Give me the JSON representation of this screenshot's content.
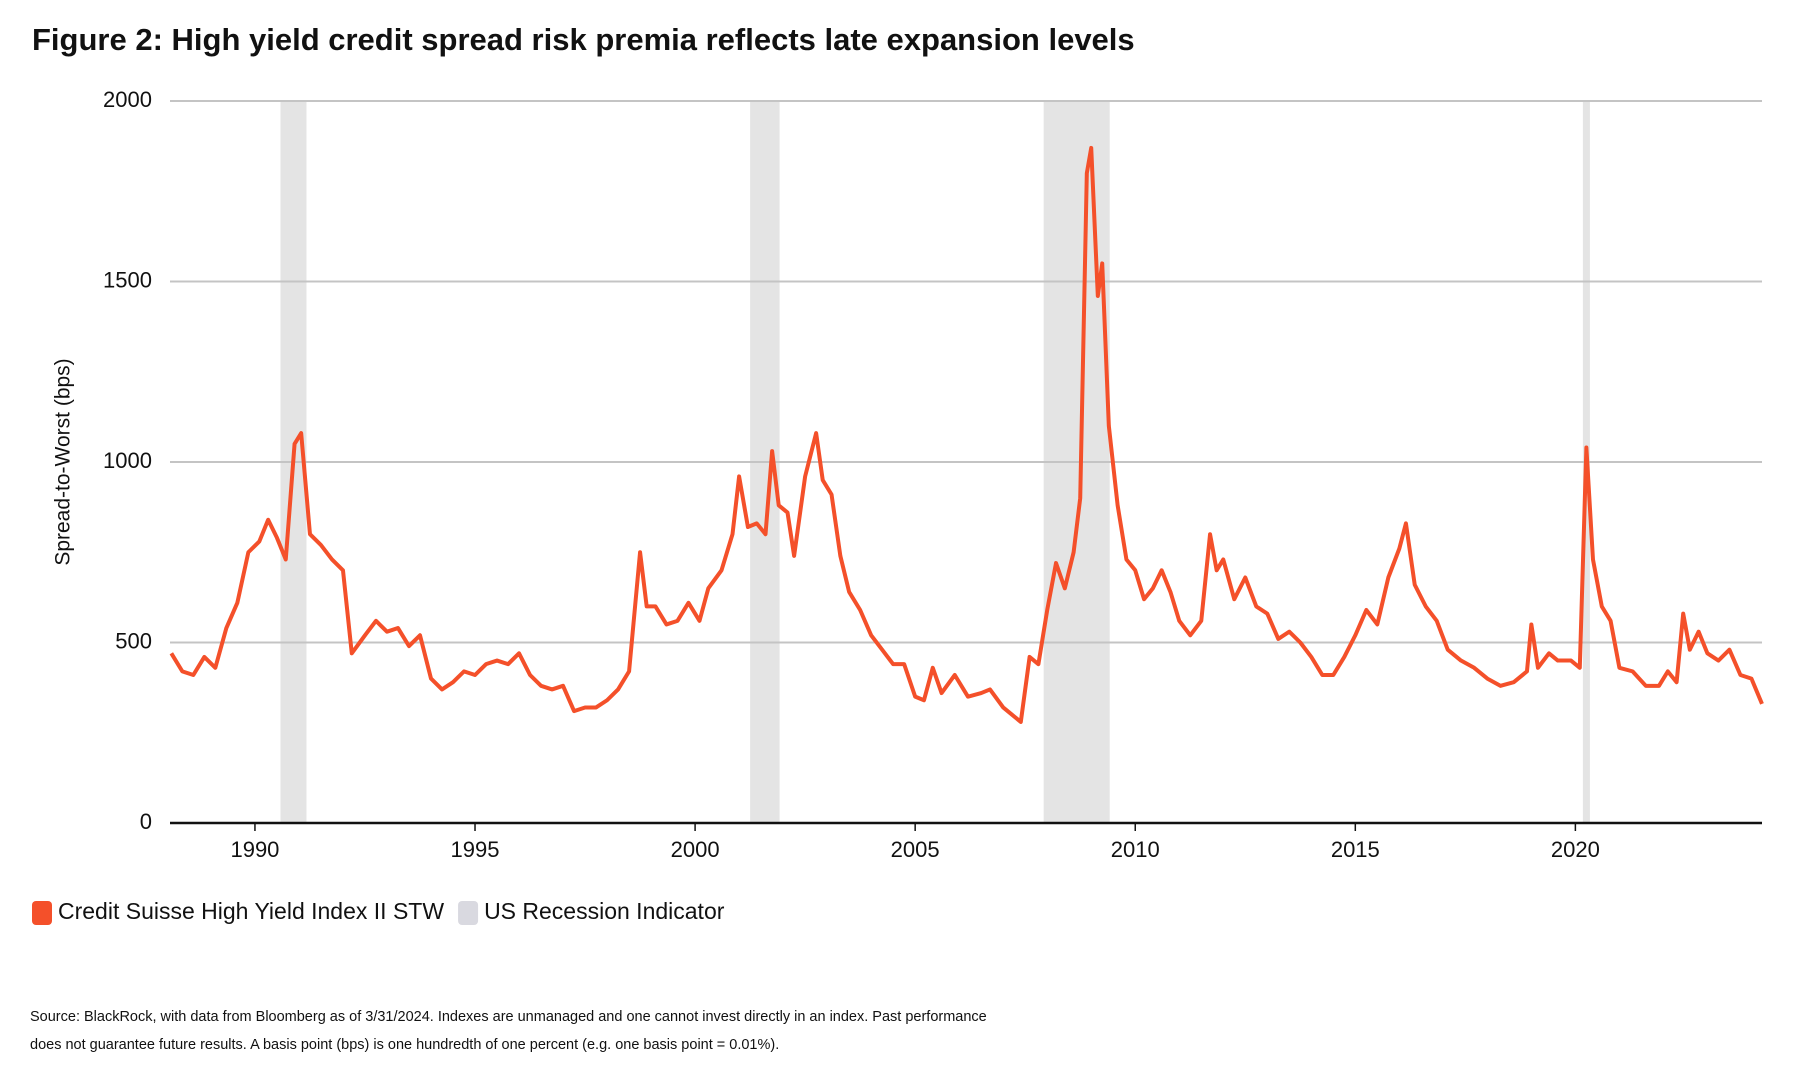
{
  "chart_data": {
    "type": "line",
    "title": "Figure 2: High yield credit spread risk premia reflects late expansion levels",
    "y_label": "Spread-to-Worst (bps)",
    "xlim": [
      1988.07,
      2024.24
    ],
    "xticks": [
      1990,
      1995,
      2000,
      2005,
      2010,
      2015,
      2020
    ],
    "ylim": [
      0,
      2000
    ],
    "yticks": [
      0,
      500,
      1000,
      1500,
      2000
    ],
    "grid": true,
    "legend": "bottom-left",
    "shaded_regions": {
      "name": "US Recession Indicator",
      "color": "#e4e4e4",
      "ranges": [
        [
          1990.58,
          1991.17
        ],
        [
          2001.25,
          2001.92
        ],
        [
          2007.92,
          2009.42
        ],
        [
          2020.17,
          2020.33
        ]
      ]
    },
    "series": [
      {
        "name": "Credit Suisse High Yield Index II STW",
        "color": "#f4502a",
        "x": [
          1988.1,
          1988.35,
          1988.6,
          1988.85,
          1989.1,
          1989.35,
          1989.6,
          1989.85,
          1990.1,
          1990.3,
          1990.5,
          1990.7,
          1990.9,
          1991.05,
          1991.25,
          1991.5,
          1991.75,
          1992.0,
          1992.2,
          1992.5,
          1992.75,
          1993.0,
          1993.25,
          1993.5,
          1993.75,
          1994.0,
          1994.25,
          1994.5,
          1994.75,
          1995.0,
          1995.25,
          1995.5,
          1995.75,
          1996.0,
          1996.25,
          1996.5,
          1996.75,
          1997.0,
          1997.25,
          1997.5,
          1997.75,
          1998.0,
          1998.25,
          1998.5,
          1998.75,
          1998.9,
          1999.1,
          1999.35,
          1999.6,
          1999.85,
          2000.1,
          2000.3,
          2000.6,
          2000.85,
          2001.0,
          2001.2,
          2001.4,
          2001.6,
          2001.75,
          2001.9,
          2002.1,
          2002.25,
          2002.5,
          2002.75,
          2002.9,
          2003.1,
          2003.3,
          2003.5,
          2003.75,
          2004.0,
          2004.25,
          2004.5,
          2004.75,
          2005.0,
          2005.2,
          2005.4,
          2005.6,
          2005.9,
          2006.2,
          2006.5,
          2006.7,
          2007.0,
          2007.2,
          2007.4,
          2007.6,
          2007.8,
          2008.0,
          2008.2,
          2008.4,
          2008.6,
          2008.75,
          2008.9,
          2009.0,
          2009.15,
          2009.25,
          2009.4,
          2009.6,
          2009.8,
          2010.0,
          2010.2,
          2010.4,
          2010.6,
          2010.8,
          2011.0,
          2011.25,
          2011.5,
          2011.7,
          2011.85,
          2012.0,
          2012.25,
          2012.5,
          2012.75,
          2013.0,
          2013.25,
          2013.5,
          2013.75,
          2014.0,
          2014.25,
          2014.5,
          2014.75,
          2015.0,
          2015.25,
          2015.5,
          2015.75,
          2016.0,
          2016.15,
          2016.35,
          2016.6,
          2016.85,
          2017.1,
          2017.4,
          2017.7,
          2018.0,
          2018.3,
          2018.6,
          2018.9,
          2019.0,
          2019.15,
          2019.4,
          2019.6,
          2019.9,
          2020.1,
          2020.25,
          2020.4,
          2020.6,
          2020.8,
          2021.0,
          2021.3,
          2021.6,
          2021.9,
          2022.1,
          2022.3,
          2022.45,
          2022.6,
          2022.8,
          2023.0,
          2023.25,
          2023.5,
          2023.75,
          2024.0,
          2024.24
        ],
        "values": [
          470,
          420,
          410,
          460,
          430,
          540,
          610,
          750,
          780,
          840,
          790,
          730,
          1050,
          1080,
          800,
          770,
          730,
          700,
          470,
          520,
          560,
          530,
          540,
          490,
          520,
          400,
          370,
          390,
          420,
          410,
          440,
          450,
          440,
          470,
          410,
          380,
          370,
          380,
          310,
          320,
          320,
          340,
          370,
          420,
          750,
          600,
          600,
          550,
          560,
          610,
          560,
          650,
          700,
          800,
          960,
          820,
          830,
          800,
          1030,
          880,
          860,
          740,
          960,
          1080,
          950,
          910,
          740,
          640,
          590,
          520,
          480,
          440,
          440,
          350,
          340,
          430,
          360,
          410,
          350,
          360,
          370,
          320,
          300,
          280,
          460,
          440,
          590,
          720,
          650,
          750,
          900,
          1800,
          1870,
          1460,
          1550,
          1100,
          880,
          730,
          700,
          620,
          650,
          700,
          640,
          560,
          520,
          560,
          800,
          700,
          730,
          620,
          680,
          600,
          580,
          510,
          530,
          500,
          460,
          410,
          410,
          460,
          520,
          590,
          550,
          680,
          760,
          830,
          660,
          600,
          560,
          480,
          450,
          430,
          400,
          380,
          390,
          420,
          550,
          430,
          470,
          450,
          450,
          430,
          1040,
          730,
          600,
          560,
          430,
          420,
          380,
          380,
          420,
          390,
          580,
          480,
          530,
          470,
          450,
          480,
          410,
          400,
          330
        ]
      }
    ],
    "notes": [
      "Source: BlackRock, with data from Bloomberg as of 3/31/2024. Indexes are unmanaged and one cannot invest directly in an index. Past performance",
      "does not guarantee future results. A basis point (bps) is one hundredth of one percent (e.g. one basis point = 0.01%)."
    ]
  }
}
